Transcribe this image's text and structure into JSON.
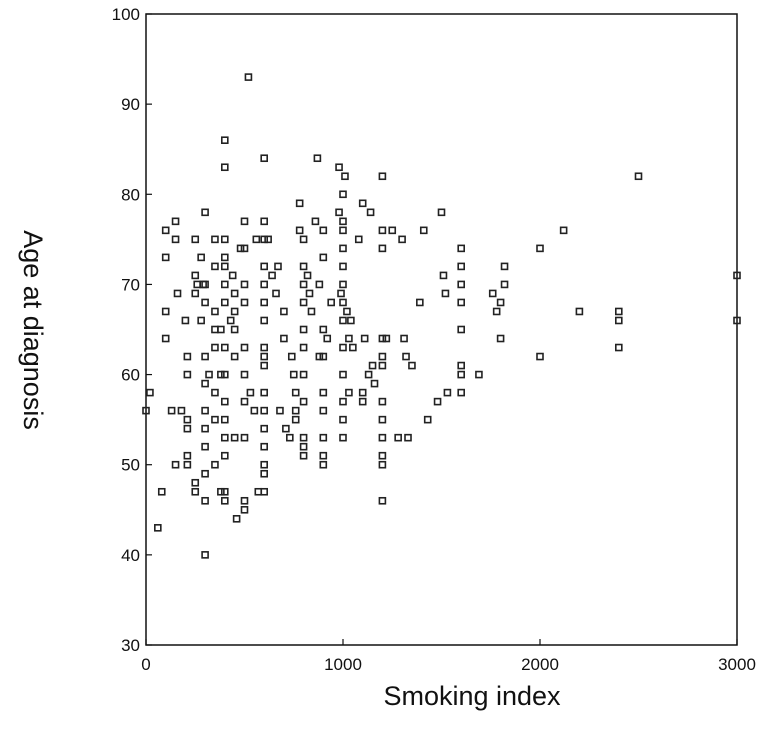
{
  "chart_data": {
    "type": "scatter",
    "title": "",
    "xlabel": "Smoking index",
    "ylabel": "Age at diagnosis",
    "xlim": [
      0,
      3000
    ],
    "ylim": [
      30,
      100
    ],
    "xticks": [
      "0",
      "1000",
      "2000",
      "3000"
    ],
    "yticks": [
      "30",
      "40",
      "50",
      "60",
      "70",
      "80",
      "90",
      "100"
    ],
    "grid": false,
    "legend": "none",
    "marker": "open-square",
    "points": [
      [
        0,
        56
      ],
      [
        20,
        58
      ],
      [
        60,
        43
      ],
      [
        80,
        47
      ],
      [
        100,
        76
      ],
      [
        100,
        73
      ],
      [
        100,
        67
      ],
      [
        100,
        64
      ],
      [
        130,
        56
      ],
      [
        150,
        77
      ],
      [
        150,
        75
      ],
      [
        150,
        50
      ],
      [
        160,
        69
      ],
      [
        180,
        56
      ],
      [
        200,
        66
      ],
      [
        210,
        60
      ],
      [
        210,
        62
      ],
      [
        210,
        55
      ],
      [
        210,
        54
      ],
      [
        210,
        51
      ],
      [
        210,
        50
      ],
      [
        250,
        75
      ],
      [
        250,
        71
      ],
      [
        250,
        69
      ],
      [
        250,
        48
      ],
      [
        250,
        47
      ],
      [
        260,
        70
      ],
      [
        280,
        73
      ],
      [
        280,
        66
      ],
      [
        290,
        70
      ],
      [
        300,
        40
      ],
      [
        300,
        46
      ],
      [
        300,
        49
      ],
      [
        300,
        52
      ],
      [
        300,
        56
      ],
      [
        300,
        59
      ],
      [
        300,
        62
      ],
      [
        300,
        68
      ],
      [
        300,
        70
      ],
      [
        300,
        78
      ],
      [
        300,
        54
      ],
      [
        320,
        60
      ],
      [
        350,
        75
      ],
      [
        350,
        72
      ],
      [
        350,
        67
      ],
      [
        350,
        65
      ],
      [
        350,
        63
      ],
      [
        350,
        58
      ],
      [
        350,
        55
      ],
      [
        350,
        50
      ],
      [
        380,
        47
      ],
      [
        380,
        60
      ],
      [
        380,
        65
      ],
      [
        400,
        86
      ],
      [
        400,
        83
      ],
      [
        400,
        75
      ],
      [
        400,
        73
      ],
      [
        400,
        72
      ],
      [
        400,
        70
      ],
      [
        400,
        68
      ],
      [
        400,
        63
      ],
      [
        400,
        60
      ],
      [
        400,
        57
      ],
      [
        400,
        55
      ],
      [
        400,
        53
      ],
      [
        400,
        51
      ],
      [
        400,
        47
      ],
      [
        400,
        46
      ],
      [
        430,
        66
      ],
      [
        440,
        71
      ],
      [
        450,
        69
      ],
      [
        450,
        67
      ],
      [
        450,
        65
      ],
      [
        450,
        62
      ],
      [
        450,
        53
      ],
      [
        460,
        44
      ],
      [
        480,
        74
      ],
      [
        500,
        77
      ],
      [
        500,
        74
      ],
      [
        500,
        70
      ],
      [
        500,
        68
      ],
      [
        500,
        63
      ],
      [
        500,
        60
      ],
      [
        500,
        57
      ],
      [
        500,
        53
      ],
      [
        500,
        46
      ],
      [
        500,
        45
      ],
      [
        520,
        93
      ],
      [
        530,
        58
      ],
      [
        550,
        56
      ],
      [
        560,
        75
      ],
      [
        570,
        47
      ],
      [
        600,
        84
      ],
      [
        600,
        77
      ],
      [
        600,
        75
      ],
      [
        600,
        72
      ],
      [
        600,
        70
      ],
      [
        600,
        68
      ],
      [
        600,
        66
      ],
      [
        600,
        63
      ],
      [
        600,
        62
      ],
      [
        600,
        61
      ],
      [
        600,
        58
      ],
      [
        600,
        56
      ],
      [
        600,
        54
      ],
      [
        600,
        52
      ],
      [
        600,
        50
      ],
      [
        600,
        49
      ],
      [
        600,
        47
      ],
      [
        620,
        75
      ],
      [
        640,
        71
      ],
      [
        660,
        69
      ],
      [
        670,
        72
      ],
      [
        680,
        56
      ],
      [
        700,
        67
      ],
      [
        700,
        64
      ],
      [
        710,
        54
      ],
      [
        730,
        53
      ],
      [
        740,
        62
      ],
      [
        750,
        60
      ],
      [
        760,
        58
      ],
      [
        760,
        56
      ],
      [
        760,
        55
      ],
      [
        780,
        79
      ],
      [
        780,
        76
      ],
      [
        800,
        75
      ],
      [
        800,
        72
      ],
      [
        800,
        70
      ],
      [
        800,
        68
      ],
      [
        800,
        65
      ],
      [
        800,
        63
      ],
      [
        800,
        60
      ],
      [
        800,
        57
      ],
      [
        800,
        53
      ],
      [
        800,
        52
      ],
      [
        800,
        51
      ],
      [
        820,
        71
      ],
      [
        830,
        69
      ],
      [
        840,
        67
      ],
      [
        860,
        77
      ],
      [
        870,
        84
      ],
      [
        880,
        70
      ],
      [
        880,
        62
      ],
      [
        900,
        76
      ],
      [
        900,
        73
      ],
      [
        900,
        65
      ],
      [
        900,
        62
      ],
      [
        900,
        58
      ],
      [
        900,
        56
      ],
      [
        900,
        53
      ],
      [
        900,
        51
      ],
      [
        900,
        50
      ],
      [
        920,
        64
      ],
      [
        940,
        68
      ],
      [
        980,
        83
      ],
      [
        980,
        78
      ],
      [
        990,
        69
      ],
      [
        1000,
        80
      ],
      [
        1000,
        77
      ],
      [
        1000,
        76
      ],
      [
        1000,
        74
      ],
      [
        1000,
        72
      ],
      [
        1000,
        70
      ],
      [
        1000,
        68
      ],
      [
        1000,
        66
      ],
      [
        1000,
        63
      ],
      [
        1000,
        60
      ],
      [
        1000,
        57
      ],
      [
        1000,
        55
      ],
      [
        1000,
        53
      ],
      [
        1010,
        82
      ],
      [
        1020,
        67
      ],
      [
        1030,
        64
      ],
      [
        1030,
        58
      ],
      [
        1040,
        66
      ],
      [
        1050,
        63
      ],
      [
        1080,
        75
      ],
      [
        1100,
        79
      ],
      [
        1100,
        58
      ],
      [
        1100,
        57
      ],
      [
        1110,
        64
      ],
      [
        1130,
        60
      ],
      [
        1140,
        78
      ],
      [
        1150,
        61
      ],
      [
        1160,
        59
      ],
      [
        1200,
        82
      ],
      [
        1200,
        76
      ],
      [
        1200,
        74
      ],
      [
        1200,
        64
      ],
      [
        1200,
        62
      ],
      [
        1200,
        61
      ],
      [
        1200,
        57
      ],
      [
        1200,
        55
      ],
      [
        1200,
        53
      ],
      [
        1200,
        51
      ],
      [
        1200,
        50
      ],
      [
        1200,
        46
      ],
      [
        1220,
        64
      ],
      [
        1250,
        76
      ],
      [
        1280,
        53
      ],
      [
        1300,
        75
      ],
      [
        1310,
        64
      ],
      [
        1320,
        62
      ],
      [
        1330,
        53
      ],
      [
        1350,
        61
      ],
      [
        1390,
        68
      ],
      [
        1410,
        76
      ],
      [
        1430,
        55
      ],
      [
        1480,
        57
      ],
      [
        1500,
        78
      ],
      [
        1510,
        71
      ],
      [
        1520,
        69
      ],
      [
        1530,
        58
      ],
      [
        1600,
        74
      ],
      [
        1600,
        72
      ],
      [
        1600,
        70
      ],
      [
        1600,
        68
      ],
      [
        1600,
        65
      ],
      [
        1600,
        61
      ],
      [
        1600,
        60
      ],
      [
        1600,
        58
      ],
      [
        1690,
        60
      ],
      [
        1760,
        69
      ],
      [
        1780,
        67
      ],
      [
        1800,
        64
      ],
      [
        1800,
        68
      ],
      [
        1820,
        72
      ],
      [
        1820,
        70
      ],
      [
        2000,
        74
      ],
      [
        2000,
        62
      ],
      [
        2120,
        76
      ],
      [
        2200,
        67
      ],
      [
        2400,
        67
      ],
      [
        2400,
        66
      ],
      [
        2400,
        63
      ],
      [
        2500,
        82
      ],
      [
        3000,
        71
      ],
      [
        3000,
        66
      ]
    ]
  }
}
